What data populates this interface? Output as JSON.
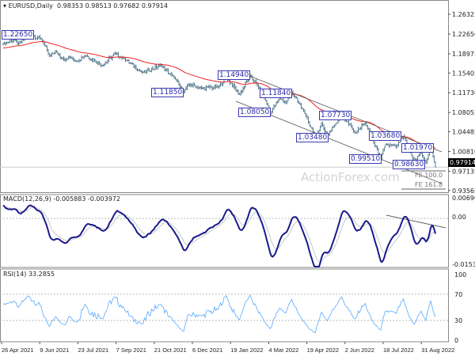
{
  "header": {
    "symbol": "EURUSD,Daily",
    "ohlc": "0.98353 0.98513 0.97682 0.97914",
    "macd_title": "MACD(12,26,9) -0.005883 -0.003972",
    "rsi_title": "RSI(14) 33.2855"
  },
  "watermark": "ActionForex.com",
  "current_price": "0.97914",
  "fe_labels": [
    "FE 100.0",
    "FE 161.8"
  ],
  "level_labels": [
    "1.22650",
    "1.11850",
    "1.14940",
    "1.11840",
    "1.08050",
    "1.07730",
    "1.03480",
    "1.03680",
    "1.01970",
    "0.99510",
    "0.98630"
  ],
  "colors": {
    "bars": "#5b7f93",
    "ma": "#ee2222",
    "macd": "#1a1a8c",
    "signal": "#c8c8c8",
    "rsi": "#55aaff",
    "label": "#2a2aa8"
  },
  "chart_data": [
    {
      "type": "ohlc",
      "panel": "price",
      "price_axis_ticks": [
        "1.26325",
        "1.22650",
        "1.18975",
        "1.15405",
        "1.11730",
        "1.08055",
        "1.04485",
        "1.00810",
        "0.97135",
        "0.93565"
      ],
      "ylim": [
        0.93565,
        1.26325
      ],
      "moving_average": "red",
      "close_anchors": [
        [
          "2021-04-26",
          1.208
        ],
        [
          "2021-05-07",
          1.216
        ],
        [
          "2021-05-13",
          1.208
        ],
        [
          "2021-05-25",
          1.2265
        ],
        [
          "2021-06-09",
          1.218
        ],
        [
          "2021-06-18",
          1.186
        ],
        [
          "2021-06-25",
          1.194
        ],
        [
          "2021-07-07",
          1.178
        ],
        [
          "2021-07-13",
          1.184
        ],
        [
          "2021-07-21",
          1.176
        ],
        [
          "2021-07-30",
          1.187
        ],
        [
          "2021-08-20",
          1.168
        ],
        [
          "2021-09-03",
          1.19
        ],
        [
          "2021-09-15",
          1.18
        ],
        [
          "2021-10-06",
          1.155
        ],
        [
          "2021-10-28",
          1.168
        ],
        [
          "2021-11-12",
          1.145
        ],
        [
          "2021-11-24",
          1.1185
        ],
        [
          "2021-11-30",
          1.133
        ],
        [
          "2021-12-15",
          1.126
        ],
        [
          "2022-01-04",
          1.128
        ],
        [
          "2022-01-13",
          1.146
        ],
        [
          "2022-01-28",
          1.114
        ],
        [
          "2022-02-10",
          1.1494
        ],
        [
          "2022-02-24",
          1.119
        ],
        [
          "2022-03-07",
          1.0805
        ],
        [
          "2022-03-17",
          1.107
        ],
        [
          "2022-03-24",
          1.099
        ],
        [
          "2022-03-31",
          1.1184
        ],
        [
          "2022-04-14",
          1.083
        ],
        [
          "2022-04-28",
          1.0348
        ],
        [
          "2022-05-05",
          1.06
        ],
        [
          "2022-05-12",
          1.038
        ],
        [
          "2022-05-30",
          1.0773
        ],
        [
          "2022-06-14",
          1.043
        ],
        [
          "2022-06-27",
          1.0615
        ],
        [
          "2022-07-14",
          0.9951
        ],
        [
          "2022-07-20",
          1.022
        ],
        [
          "2022-08-02",
          1.017
        ],
        [
          "2022-08-10",
          1.0368
        ],
        [
          "2022-08-23",
          0.99
        ],
        [
          "2022-08-31",
          1.006
        ],
        [
          "2022-09-06",
          0.9863
        ],
        [
          "2022-09-12",
          1.0197
        ],
        [
          "2022-09-16",
          0.97914
        ]
      ]
    },
    {
      "type": "line",
      "panel": "MACD(12,26,9)",
      "axis_ticks": [
        "0.006906",
        "0.00",
        "-0.015348"
      ],
      "ylim": [
        -0.015348,
        0.006906
      ],
      "last_values": [
        -0.005883,
        -0.003972
      ]
    },
    {
      "type": "line",
      "panel": "RSI(14)",
      "axis_ticks": [
        "100",
        "70",
        "30",
        "0"
      ],
      "ylim": [
        0,
        100
      ],
      "levels": [
        70,
        30
      ],
      "last_value": 33.2855
    }
  ],
  "x_axis_ticks": [
    "26 Apr 2021",
    "9 Jun 2021",
    "23 Jul 2021",
    "7 Sep 2021",
    "21 Oct 2021",
    "6 Dec 2021",
    "19 Jan 2022",
    "4 Mar 2022",
    "19 Apr 2022",
    "2 Jun 2022",
    "18 Jul 2022",
    "31 Aug 2022"
  ]
}
